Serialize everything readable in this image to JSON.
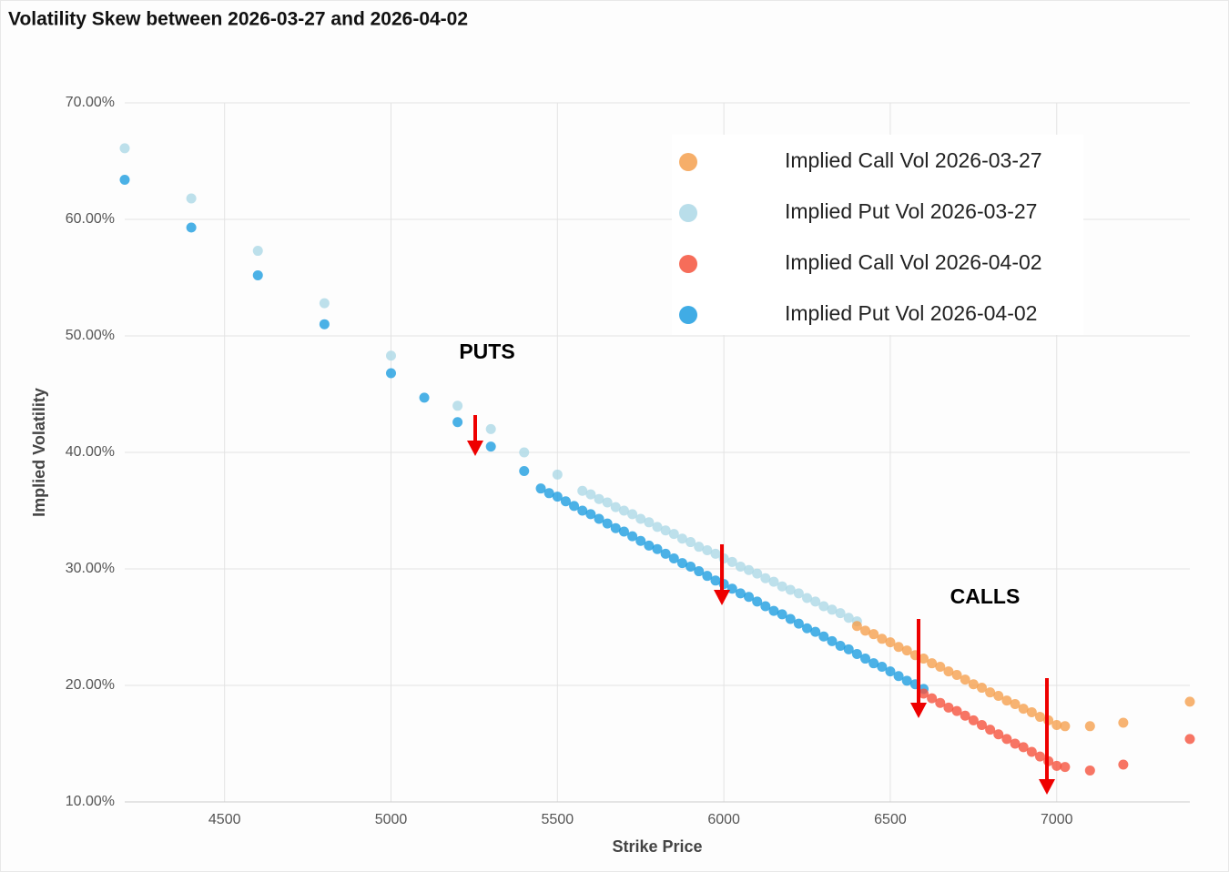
{
  "chart_data": {
    "type": "scatter",
    "title": "Volatility Skew between 2026-03-27 and 2026-04-02",
    "x_label": "Strike Price",
    "y_label": "Implied Volatility",
    "xlim": [
      4200,
      7400
    ],
    "ylim": [
      10,
      70
    ],
    "xticks": [
      4500,
      5000,
      5500,
      6000,
      6500,
      7000
    ],
    "yticks": [
      {
        "value": 10,
        "label": "10.00%"
      },
      {
        "value": 20,
        "label": "20.00%"
      },
      {
        "value": 30,
        "label": "30.00%"
      },
      {
        "value": 40,
        "label": "40.00%"
      },
      {
        "value": 50,
        "label": "50.00%"
      },
      {
        "value": 60,
        "label": "60.00%"
      },
      {
        "value": 70,
        "label": "70.00%"
      }
    ],
    "grid": true,
    "legend": "upper right",
    "annotations": [
      "PUTS",
      "CALLS"
    ],
    "series": [
      {
        "name": "Implied Put Vol 2026-03-27",
        "color": "#add8e6",
        "x": [
          4200,
          4400,
          4600,
          4800,
          5000,
          5200,
          5300,
          5400,
          5500,
          5575,
          5600,
          5625,
          5650,
          5675,
          5700,
          5725,
          5750,
          5775,
          5800,
          5825,
          5850,
          5875,
          5900,
          5925,
          5950,
          5975,
          6000,
          6025,
          6050,
          6075,
          6100,
          6125,
          6150,
          6175,
          6200,
          6225,
          6250,
          6275,
          6300,
          6325,
          6350,
          6375,
          6400
        ],
        "values": [
          66.1,
          61.8,
          57.3,
          52.8,
          48.3,
          44.0,
          42.0,
          40.0,
          38.1,
          36.7,
          36.4,
          36.0,
          35.7,
          35.3,
          35.0,
          34.7,
          34.3,
          34.0,
          33.6,
          33.3,
          33.0,
          32.6,
          32.3,
          31.9,
          31.6,
          31.3,
          30.9,
          30.6,
          30.2,
          29.9,
          29.6,
          29.2,
          28.9,
          28.5,
          28.2,
          27.9,
          27.5,
          27.2,
          26.8,
          26.5,
          26.2,
          25.8,
          25.5
        ]
      },
      {
        "name": "Implied Put Vol 2026-04-02",
        "color": "#1e9ee0",
        "x": [
          4200,
          4400,
          4600,
          4800,
          5000,
          5100,
          5200,
          5300,
          5400,
          5450,
          5475,
          5500,
          5525,
          5550,
          5575,
          5600,
          5625,
          5650,
          5675,
          5700,
          5725,
          5750,
          5775,
          5800,
          5825,
          5850,
          5875,
          5900,
          5925,
          5950,
          5975,
          6000,
          6025,
          6050,
          6075,
          6100,
          6125,
          6150,
          6175,
          6200,
          6225,
          6250,
          6275,
          6300,
          6325,
          6350,
          6375,
          6400,
          6425,
          6450,
          6475,
          6500,
          6525,
          6550,
          6575,
          6600
        ],
        "values": [
          63.4,
          59.3,
          55.2,
          51.0,
          46.8,
          44.7,
          42.6,
          40.5,
          38.4,
          36.9,
          36.5,
          36.2,
          35.8,
          35.4,
          35.0,
          34.7,
          34.3,
          33.9,
          33.5,
          33.2,
          32.8,
          32.4,
          32.0,
          31.7,
          31.3,
          30.9,
          30.5,
          30.2,
          29.8,
          29.4,
          29.0,
          28.7,
          28.3,
          27.9,
          27.6,
          27.2,
          26.8,
          26.4,
          26.1,
          25.7,
          25.3,
          24.9,
          24.6,
          24.2,
          23.8,
          23.4,
          23.1,
          22.7,
          22.3,
          21.9,
          21.6,
          21.2,
          20.8,
          20.4,
          20.1,
          19.7
        ]
      },
      {
        "name": "Implied Call Vol 2026-03-27",
        "color": "#f5a04f",
        "x": [
          6400,
          6425,
          6450,
          6475,
          6500,
          6525,
          6550,
          6575,
          6600,
          6625,
          6650,
          6675,
          6700,
          6725,
          6750,
          6775,
          6800,
          6825,
          6850,
          6875,
          6900,
          6925,
          6950,
          6975,
          7000,
          7025,
          7100,
          7200,
          7400
        ],
        "values": [
          25.1,
          24.7,
          24.4,
          24.0,
          23.7,
          23.3,
          23.0,
          22.6,
          22.3,
          21.9,
          21.6,
          21.2,
          20.9,
          20.5,
          20.1,
          19.8,
          19.4,
          19.1,
          18.7,
          18.4,
          18.0,
          17.7,
          17.3,
          17.0,
          16.6,
          16.5,
          16.5,
          16.8,
          18.6
        ]
      },
      {
        "name": "Implied Call Vol 2026-04-02",
        "color": "#f5533d",
        "x": [
          6600,
          6625,
          6650,
          6675,
          6700,
          6725,
          6750,
          6775,
          6800,
          6825,
          6850,
          6875,
          6900,
          6925,
          6950,
          6975,
          7000,
          7025,
          7100,
          7200,
          7400
        ],
        "values": [
          19.3,
          18.9,
          18.5,
          18.1,
          17.8,
          17.4,
          17.0,
          16.6,
          16.2,
          15.8,
          15.4,
          15.0,
          14.7,
          14.3,
          13.9,
          13.5,
          13.1,
          13.0,
          12.7,
          13.2,
          15.4
        ]
      }
    ],
    "legend_order": [
      2,
      0,
      3,
      1
    ]
  }
}
